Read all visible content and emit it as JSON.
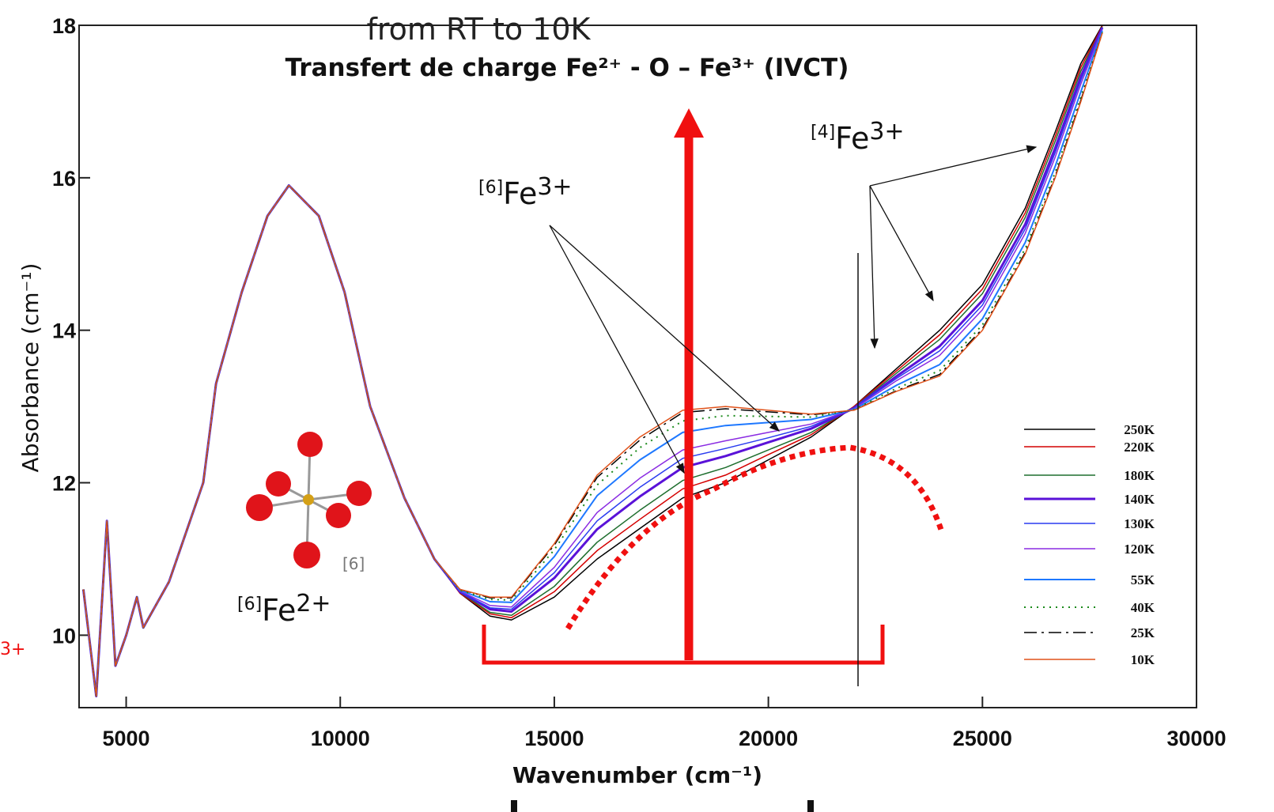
{
  "chart_data": {
    "type": "line",
    "title": "Transfert de charge Fe²⁺ - O – Fe³⁺ (IVCT)",
    "subtitle": "from RT to 10K",
    "x_label": "Wavenumber (cm⁻¹)",
    "y_label": "Absorbance (cm⁻¹)",
    "xlim": [
      3900,
      30000
    ],
    "ylim": [
      9.05,
      18
    ],
    "xticks": [
      5000,
      10000,
      15000,
      20000,
      25000,
      30000
    ],
    "yticks": [
      10,
      12,
      14,
      16,
      18
    ],
    "legend": "right",
    "annotations": [
      {
        "pre": "[6]",
        "main": "Fe",
        "sup": "3+"
      },
      {
        "pre": "[4]",
        "main": "Fe",
        "sup": "3+"
      },
      {
        "pre": "[6]",
        "main": "Fe",
        "sup": "2+"
      }
    ],
    "molecule_label": "[6]",
    "left_fragment": "3+",
    "x": [
      4000,
      4300,
      4550,
      4750,
      5000,
      5250,
      5400,
      6000,
      6800,
      7100,
      7700,
      8300,
      8800,
      9500,
      10100,
      10700,
      11500,
      12200,
      12800,
      13500,
      14000,
      15000,
      16000,
      17000,
      18000,
      19000,
      20000,
      21000,
      22000,
      23000,
      24000,
      25000,
      26000,
      26700,
      27300,
      27800
    ],
    "series": [
      {
        "name": "250K",
        "color": "#000000",
        "style": "solid",
        "width": 1.5,
        "values": [
          10.6,
          9.2,
          11.5,
          9.6,
          10.0,
          10.5,
          10.1,
          10.7,
          12.0,
          13.3,
          14.5,
          15.5,
          15.9,
          15.5,
          14.5,
          13.0,
          11.8,
          11.0,
          10.55,
          10.25,
          10.2,
          10.5,
          11.0,
          11.4,
          11.8,
          12.0,
          12.3,
          12.6,
          13.0,
          13.5,
          14.0,
          14.6,
          15.6,
          16.6,
          17.5,
          18
        ]
      },
      {
        "name": "220K",
        "color": "#d40000",
        "style": "solid",
        "width": 1.5,
        "values": [
          10.6,
          9.2,
          11.5,
          9.6,
          10.0,
          10.5,
          10.1,
          10.7,
          12.0,
          13.3,
          14.5,
          15.5,
          15.9,
          15.5,
          14.5,
          13.0,
          11.8,
          11.0,
          10.55,
          10.28,
          10.23,
          10.57,
          11.11,
          11.52,
          11.92,
          12.1,
          12.37,
          12.63,
          13.0,
          13.47,
          13.94,
          14.54,
          15.54,
          16.54,
          17.45,
          17.99
        ]
      },
      {
        "name": "180K",
        "color": "#1e6e2e",
        "style": "solid",
        "width": 1.5,
        "values": [
          10.6,
          9.2,
          11.5,
          9.6,
          10.0,
          10.5,
          10.1,
          10.7,
          12.0,
          13.3,
          14.5,
          15.5,
          15.9,
          15.5,
          14.5,
          13.0,
          11.8,
          11.0,
          10.56,
          10.3,
          10.26,
          10.64,
          11.22,
          11.64,
          12.03,
          12.2,
          12.43,
          12.66,
          12.99,
          13.44,
          13.88,
          14.48,
          15.48,
          16.48,
          17.4,
          17.98
        ]
      },
      {
        "name": "140K",
        "color": "#5a12d8",
        "style": "solid",
        "width": 3,
        "values": [
          10.6,
          9.2,
          11.5,
          9.6,
          10.0,
          10.5,
          10.1,
          10.7,
          12.0,
          13.3,
          14.5,
          15.5,
          15.9,
          15.5,
          14.5,
          13.0,
          11.8,
          11.0,
          10.57,
          10.34,
          10.31,
          10.75,
          11.39,
          11.82,
          12.2,
          12.35,
          12.53,
          12.71,
          12.98,
          13.4,
          13.79,
          14.39,
          15.39,
          16.39,
          17.33,
          17.97
        ]
      },
      {
        "name": "130K",
        "color": "#2a3cf0",
        "style": "solid",
        "width": 1.5,
        "values": [
          10.6,
          9.2,
          11.5,
          9.6,
          10.0,
          10.5,
          10.1,
          10.7,
          12.0,
          13.3,
          14.5,
          15.5,
          15.9,
          15.5,
          14.5,
          13.0,
          11.8,
          11.0,
          10.57,
          10.36,
          10.34,
          10.82,
          11.5,
          11.94,
          12.32,
          12.45,
          12.59,
          12.74,
          12.98,
          13.37,
          13.73,
          14.33,
          15.33,
          16.33,
          17.28,
          17.96
        ]
      },
      {
        "name": "120K",
        "color": "#8a2be2",
        "style": "solid",
        "width": 1.5,
        "values": [
          10.6,
          9.2,
          11.5,
          9.6,
          10.0,
          10.5,
          10.1,
          10.7,
          12.0,
          13.3,
          14.5,
          15.5,
          15.9,
          15.5,
          14.5,
          13.0,
          11.8,
          11.0,
          10.58,
          10.39,
          10.37,
          10.89,
          11.61,
          12.06,
          12.43,
          12.55,
          12.66,
          12.77,
          12.97,
          13.34,
          13.67,
          14.27,
          15.27,
          16.27,
          17.23,
          17.95
        ]
      },
      {
        "name": "55K",
        "color": "#1e78ff",
        "style": "solid",
        "width": 2,
        "values": [
          10.6,
          9.2,
          11.5,
          9.6,
          10.0,
          10.5,
          10.1,
          10.7,
          12.0,
          13.3,
          14.5,
          15.5,
          15.9,
          15.5,
          14.5,
          13.0,
          11.8,
          11.0,
          10.59,
          10.44,
          10.43,
          11.03,
          11.83,
          12.3,
          12.66,
          12.75,
          12.79,
          12.83,
          12.96,
          13.28,
          13.55,
          14.15,
          15.15,
          16.15,
          17.13,
          17.93
        ]
      },
      {
        "name": "40K",
        "color": "#1a8a1a",
        "style": "dotted",
        "width": 2,
        "values": [
          10.6,
          9.2,
          11.5,
          9.6,
          10.0,
          10.5,
          10.1,
          10.7,
          12.0,
          13.3,
          14.5,
          15.5,
          15.9,
          15.5,
          14.5,
          13.0,
          11.8,
          11.0,
          10.59,
          10.47,
          10.46,
          11.12,
          11.97,
          12.46,
          12.81,
          12.88,
          12.87,
          12.86,
          12.96,
          13.24,
          13.47,
          14.07,
          15.07,
          16.07,
          17.06,
          17.91
        ]
      },
      {
        "name": "25K",
        "color": "#000000",
        "style": "dashdot",
        "width": 1.5,
        "values": [
          10.6,
          9.2,
          11.5,
          9.6,
          10.0,
          10.5,
          10.1,
          10.7,
          12.0,
          13.3,
          14.5,
          15.5,
          15.9,
          15.5,
          14.5,
          13.0,
          11.8,
          11.0,
          10.6,
          10.49,
          10.49,
          11.18,
          12.07,
          12.56,
          12.92,
          12.97,
          12.93,
          12.89,
          12.95,
          13.21,
          13.42,
          14.02,
          15.02,
          16.02,
          17.02,
          17.9
        ]
      },
      {
        "name": "10K",
        "color": "#e0521a",
        "style": "solid",
        "width": 1.5,
        "values": [
          10.6,
          9.2,
          11.5,
          9.6,
          10.0,
          10.5,
          10.1,
          10.7,
          12.0,
          13.3,
          14.5,
          15.5,
          15.9,
          15.5,
          14.5,
          13.0,
          11.8,
          11.0,
          10.6,
          10.5,
          10.5,
          11.2,
          12.1,
          12.6,
          12.95,
          13.0,
          12.95,
          12.9,
          12.95,
          13.2,
          13.4,
          14.0,
          15.0,
          16.0,
          17.0,
          17.9
        ]
      }
    ]
  }
}
